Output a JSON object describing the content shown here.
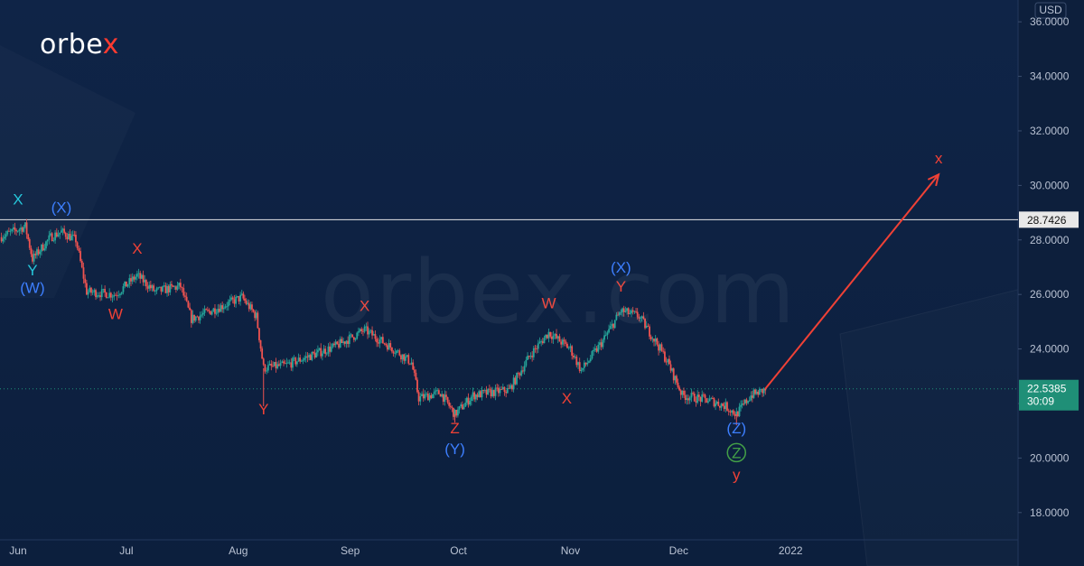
{
  "brand": {
    "logo_text": "orbe",
    "logo_accent": "x",
    "watermark": "orbex.com"
  },
  "colors": {
    "background": "#0d2142",
    "candle_up": "#26a69a",
    "candle_down": "#ef5350",
    "label_red": "#ef4136",
    "label_blue": "#3d7fff",
    "label_cyan": "#26c6da",
    "label_green": "#43a047",
    "projection": "#ef4136",
    "level_line": "#e6e6e6",
    "price_badge": "#1f8f77"
  },
  "chart_data": {
    "type": "candlestick",
    "title": "",
    "currency": "USD",
    "x_start": "2021-05-27",
    "x_end": "2022-03-05",
    "ylim": [
      17,
      36.8
    ],
    "grid": false,
    "y_ticks": [
      "18.0000",
      "20.0000",
      "22.0000",
      "24.0000",
      "26.0000",
      "28.0000",
      "30.0000",
      "32.0000",
      "34.0000",
      "36.0000"
    ],
    "x_ticks": [
      {
        "label": "Jun",
        "date": "2021-06-01"
      },
      {
        "label": "Jul",
        "date": "2021-07-01"
      },
      {
        "label": "Aug",
        "date": "2021-08-01"
      },
      {
        "label": "Sep",
        "date": "2021-09-01"
      },
      {
        "label": "Oct",
        "date": "2021-10-01"
      },
      {
        "label": "Nov",
        "date": "2021-11-01"
      },
      {
        "label": "Dec",
        "date": "2021-12-01"
      },
      {
        "label": "2022",
        "date": "2022-01-01"
      }
    ],
    "price_path": [
      [
        "2021-05-27",
        28.1
      ],
      [
        "2021-06-03",
        28.5
      ],
      [
        "2021-06-05",
        27.3
      ],
      [
        "2021-06-10",
        28.1
      ],
      [
        "2021-06-13",
        28.3
      ],
      [
        "2021-06-17",
        28.0
      ],
      [
        "2021-06-20",
        26.1
      ],
      [
        "2021-06-28",
        26.0
      ],
      [
        "2021-07-04",
        26.7
      ],
      [
        "2021-07-09",
        26.1
      ],
      [
        "2021-07-16",
        26.3
      ],
      [
        "2021-07-19",
        25.1
      ],
      [
        "2021-07-28",
        25.6
      ],
      [
        "2021-08-02",
        25.9
      ],
      [
        "2021-08-06",
        25.2
      ],
      [
        "2021-08-08",
        23.3
      ],
      [
        "2021-08-14",
        23.4
      ],
      [
        "2021-08-28",
        24.1
      ],
      [
        "2021-09-05",
        24.7
      ],
      [
        "2021-09-13",
        24.0
      ],
      [
        "2021-09-18",
        23.5
      ],
      [
        "2021-09-20",
        22.2
      ],
      [
        "2021-09-26",
        22.4
      ],
      [
        "2021-09-30",
        21.6
      ],
      [
        "2021-10-05",
        22.3
      ],
      [
        "2021-10-15",
        22.5
      ],
      [
        "2021-10-21",
        23.8
      ],
      [
        "2021-10-26",
        24.6
      ],
      [
        "2021-11-01",
        24.0
      ],
      [
        "2021-11-04",
        23.2
      ],
      [
        "2021-11-10",
        24.3
      ],
      [
        "2021-11-15",
        25.4
      ],
      [
        "2021-11-20",
        25.2
      ],
      [
        "2021-11-25",
        24.2
      ],
      [
        "2021-11-28",
        23.5
      ],
      [
        "2021-12-02",
        22.3
      ],
      [
        "2021-12-10",
        22.1
      ],
      [
        "2021-12-14",
        21.9
      ],
      [
        "2021-12-17",
        21.6
      ],
      [
        "2021-12-21",
        22.3
      ],
      [
        "2021-12-25",
        22.5
      ]
    ],
    "level": {
      "value": 28.7426,
      "label": "28.7426"
    },
    "last_price": {
      "value": 22.5385,
      "label": "22.5385",
      "countdown": "30:09"
    },
    "projection": {
      "from": [
        "2021-12-25",
        22.54
      ],
      "to": [
        "2022-02-11",
        30.4
      ]
    },
    "wave_labels": [
      {
        "text": "X",
        "color": "cyan",
        "date": "2021-06-01",
        "price": 29.3
      },
      {
        "text": "(X)",
        "color": "blue",
        "date": "2021-06-13",
        "price": 29.0
      },
      {
        "text": "Y",
        "color": "cyan",
        "date": "2021-06-05",
        "price": 26.7
      },
      {
        "text": "(W)",
        "color": "blue",
        "date": "2021-06-05",
        "price": 26.05
      },
      {
        "text": "X",
        "color": "red",
        "date": "2021-07-04",
        "price": 27.5
      },
      {
        "text": "W",
        "color": "red",
        "date": "2021-06-28",
        "price": 25.1
      },
      {
        "text": "Y",
        "color": "red",
        "date": "2021-08-08",
        "price": 21.6
      },
      {
        "text": "X",
        "color": "red",
        "date": "2021-09-05",
        "price": 25.4
      },
      {
        "text": "Z",
        "color": "red",
        "date": "2021-09-30",
        "price": 20.9
      },
      {
        "text": "(Y)",
        "color": "blue",
        "date": "2021-09-30",
        "price": 20.15
      },
      {
        "text": "W",
        "color": "red",
        "date": "2021-10-26",
        "price": 25.5
      },
      {
        "text": "X",
        "color": "red",
        "date": "2021-10-31",
        "price": 22.0
      },
      {
        "text": "(X)",
        "color": "blue",
        "date": "2021-11-15",
        "price": 26.8
      },
      {
        "text": "Y",
        "color": "red",
        "date": "2021-11-15",
        "price": 26.1
      },
      {
        "text": "(Z)",
        "color": "blue",
        "date": "2021-12-17",
        "price": 20.9
      },
      {
        "text": "Z",
        "color": "green",
        "date": "2021-12-17",
        "price": 20.0,
        "circled": true
      },
      {
        "text": "y",
        "color": "red",
        "date": "2021-12-17",
        "price": 19.2
      },
      {
        "text": "x",
        "color": "red",
        "date": "2022-02-11",
        "price": 30.8
      }
    ]
  }
}
